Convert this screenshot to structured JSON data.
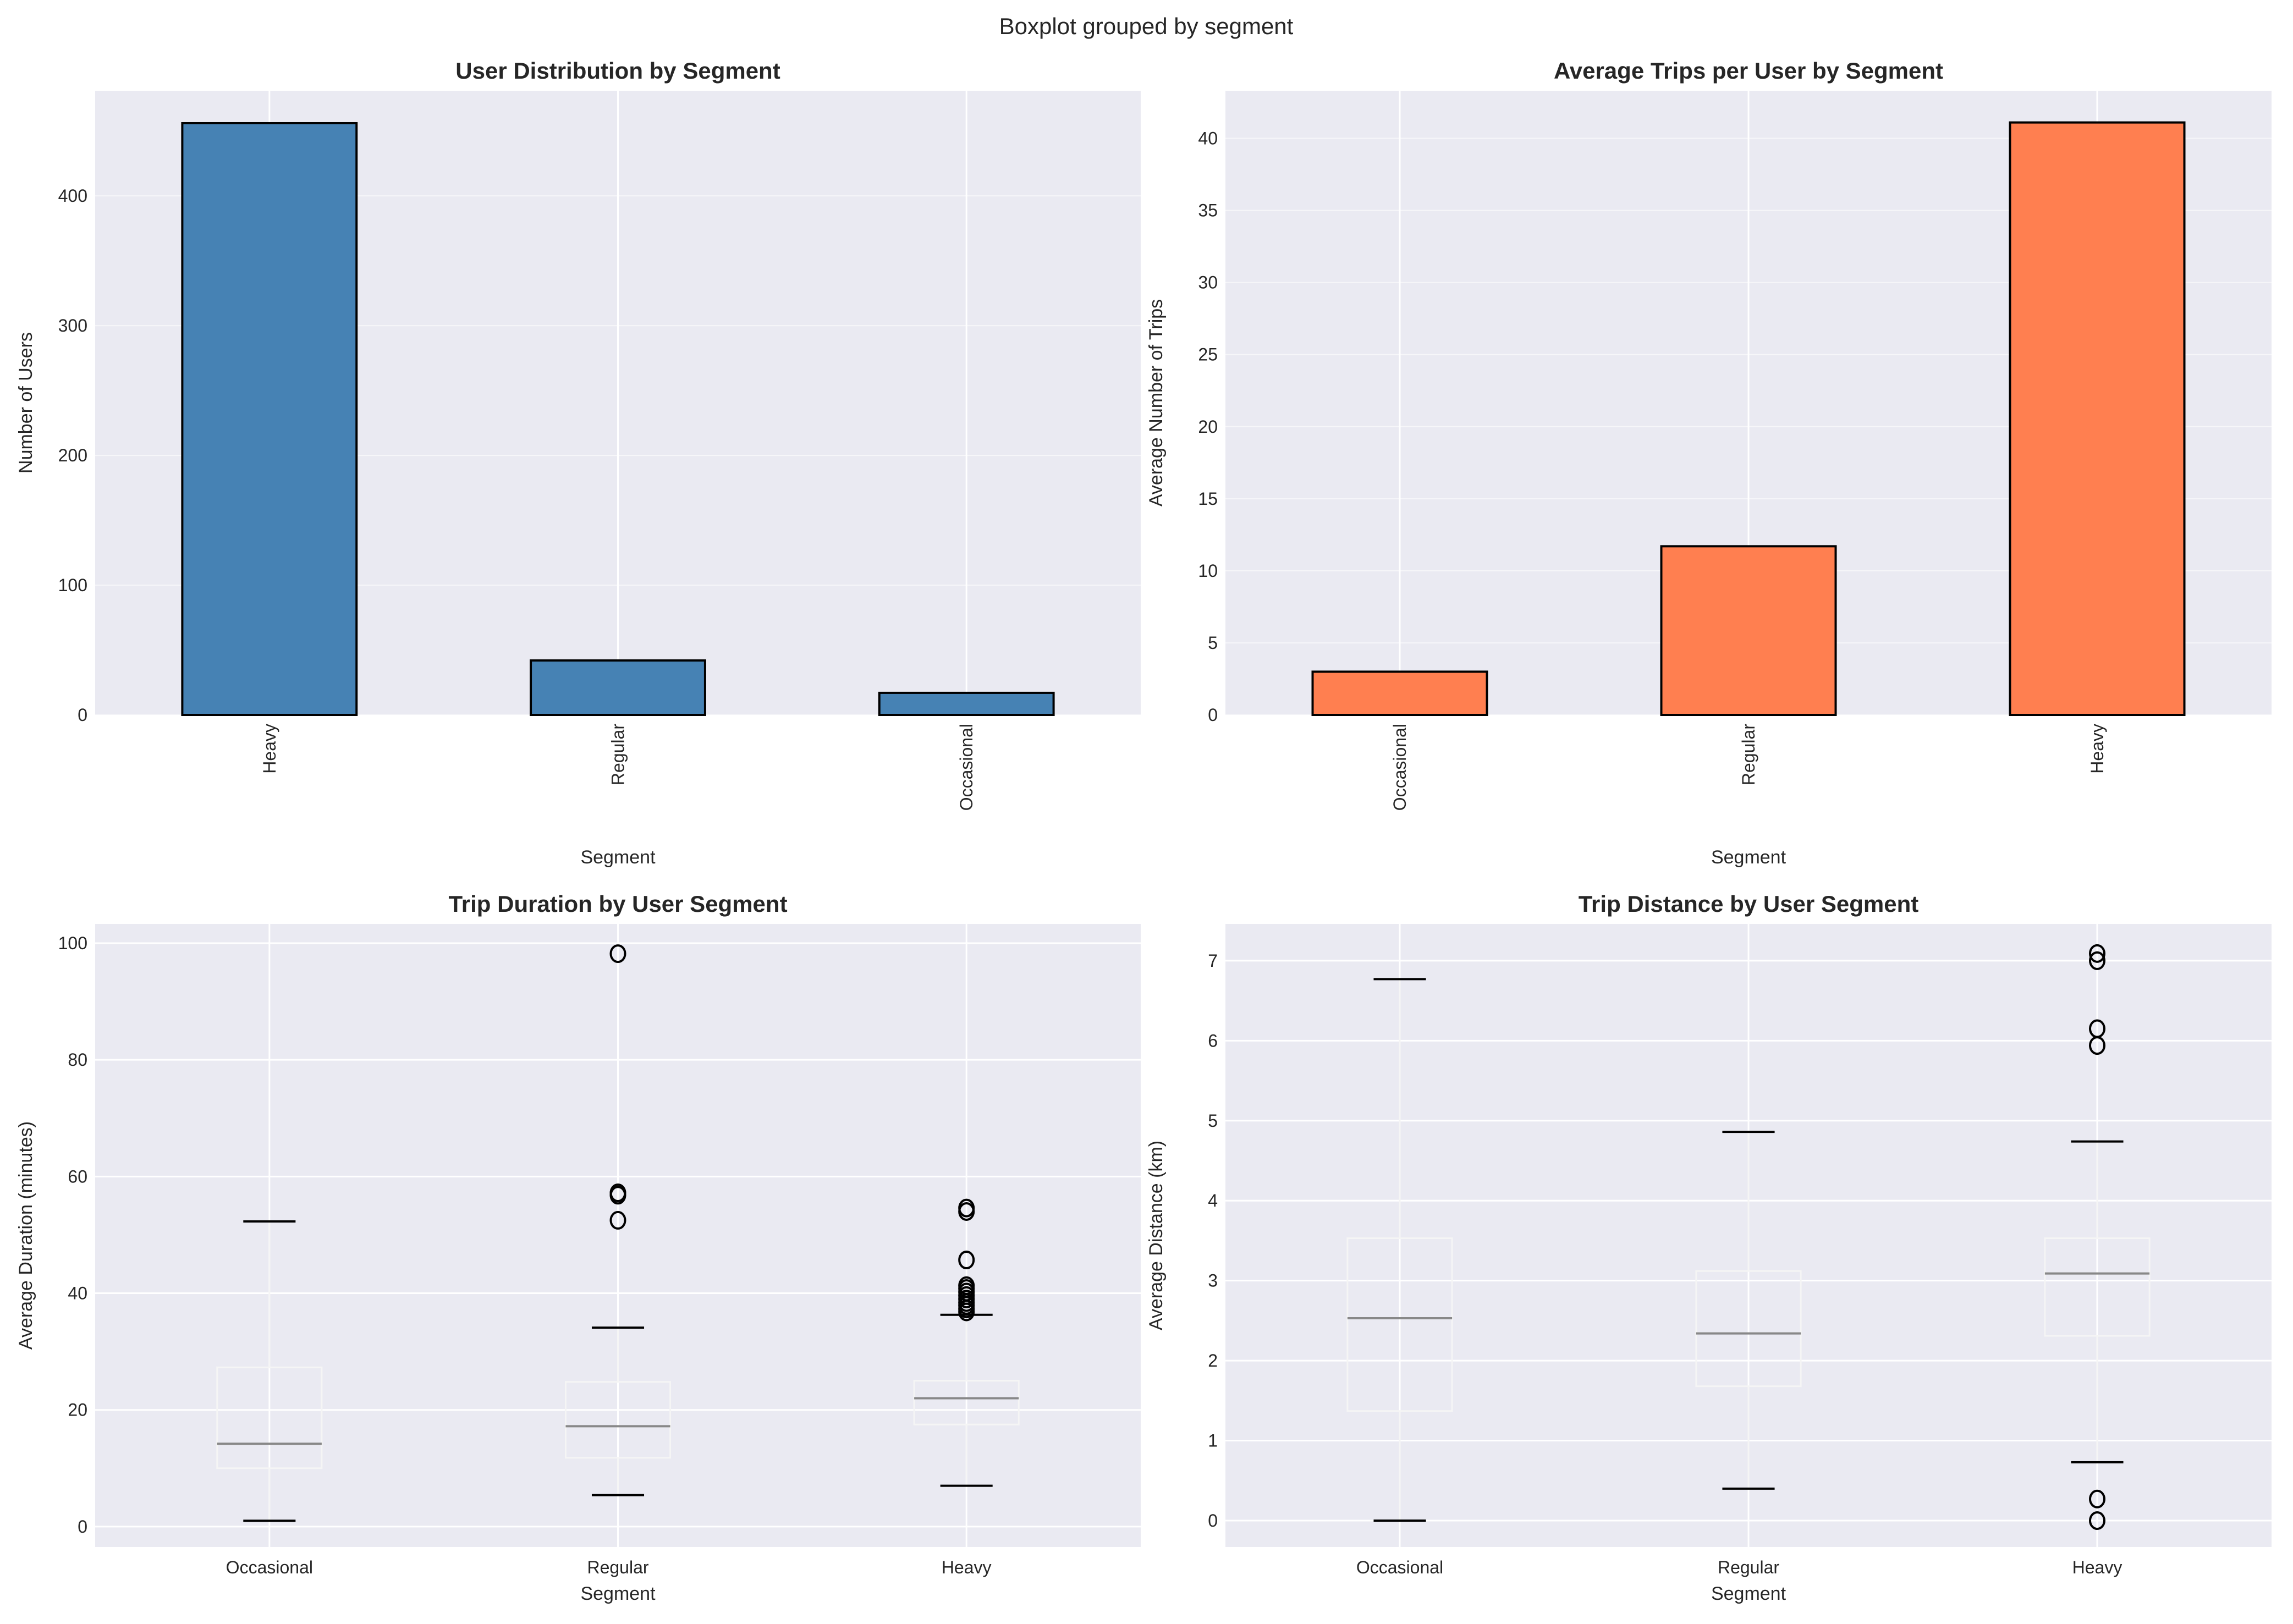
{
  "suptitle": "Boxplot grouped by segment",
  "colors": {
    "background": "#EAEAF2",
    "grid": "#FFFFFF",
    "bar_users": "#4682B4",
    "bar_trips": "#FF7F50",
    "median": "#888888",
    "box": "#F5F5F5",
    "caps": "#000000"
  },
  "chart_data": [
    {
      "type": "bar",
      "title": "User Distribution by Segment",
      "xlabel": "Segment",
      "ylabel": "Number of Users",
      "categories": [
        "Heavy",
        "Regular",
        "Occasional"
      ],
      "values": [
        456,
        42,
        17
      ],
      "ylim": [
        0,
        481
      ],
      "yticks": [
        0,
        100,
        200,
        300,
        400
      ],
      "tick_rotation": 90,
      "color": "#4682B4",
      "grid": true
    },
    {
      "type": "bar",
      "title": "Average Trips per User by Segment",
      "xlabel": "Segment",
      "ylabel": "Average Number of Trips",
      "categories": [
        "Occasional",
        "Regular",
        "Heavy"
      ],
      "values": [
        3.0,
        11.7,
        41.1
      ],
      "ylim": [
        0,
        43.3
      ],
      "yticks": [
        0,
        5,
        10,
        15,
        20,
        25,
        30,
        35,
        40
      ],
      "tick_rotation": 90,
      "color": "#FF7F50",
      "grid": true
    },
    {
      "type": "boxplot",
      "title": "Trip Duration by User Segment",
      "xlabel": "Segment",
      "ylabel": "Average Duration (minutes)",
      "categories": [
        "Occasional",
        "Regular",
        "Heavy"
      ],
      "boxes": [
        {
          "whislo": 1.0,
          "q1": 10.0,
          "med": 14.2,
          "q3": 27.3,
          "whishi": 52.3,
          "fliers": []
        },
        {
          "whislo": 5.4,
          "q1": 11.8,
          "med": 17.2,
          "q3": 24.8,
          "whishi": 34.1,
          "fliers": [
            52.5,
            56.8,
            57.2,
            98.2
          ]
        },
        {
          "whislo": 7.0,
          "q1": 17.5,
          "med": 22.0,
          "q3": 25.0,
          "whishi": 36.3,
          "fliers": [
            36.8,
            37.3,
            37.9,
            38.4,
            39.0,
            39.6,
            40.2,
            40.8,
            41.3,
            45.7,
            54.0,
            54.6
          ]
        }
      ],
      "ylim": [
        -3.5,
        103.3
      ],
      "yticks": [
        0,
        20,
        40,
        60,
        80,
        100
      ],
      "grid": true
    },
    {
      "type": "boxplot",
      "title": "Trip Distance by User Segment",
      "xlabel": "Segment",
      "ylabel": "Average Distance (km)",
      "categories": [
        "Occasional",
        "Regular",
        "Heavy"
      ],
      "boxes": [
        {
          "whislo": 0.0,
          "q1": 1.37,
          "med": 2.53,
          "q3": 3.53,
          "whishi": 6.77,
          "fliers": []
        },
        {
          "whislo": 0.4,
          "q1": 1.68,
          "med": 2.34,
          "q3": 3.12,
          "whishi": 4.86,
          "fliers": []
        },
        {
          "whislo": 0.73,
          "q1": 2.31,
          "med": 3.09,
          "q3": 3.53,
          "whishi": 4.74,
          "fliers": [
            0.0,
            0.27,
            5.94,
            6.15,
            7.0,
            7.09
          ]
        }
      ],
      "ylim": [
        -0.33,
        7.46
      ],
      "yticks": [
        0,
        1,
        2,
        3,
        4,
        5,
        6,
        7
      ],
      "grid": true
    }
  ]
}
